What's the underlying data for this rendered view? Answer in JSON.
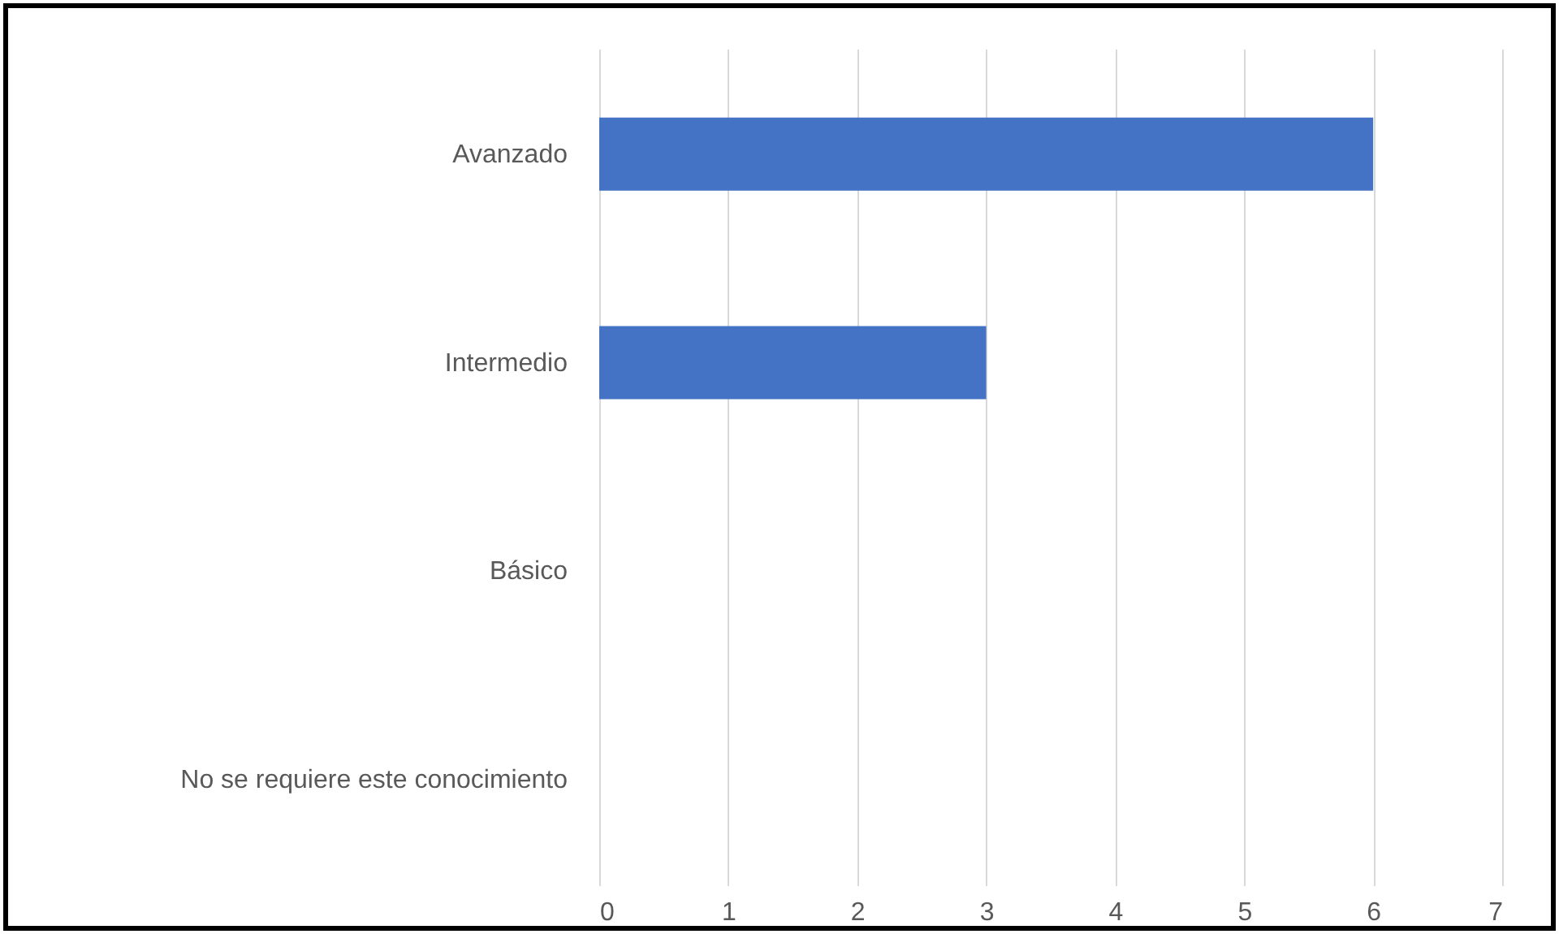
{
  "chart_data": {
    "type": "bar",
    "orientation": "horizontal",
    "categories": [
      "Avanzado",
      "Intermedio",
      "Básico",
      "No se requiere este conocimiento"
    ],
    "values": [
      6,
      3,
      0,
      0
    ],
    "color": "#4472c4",
    "xlim": [
      0,
      7
    ],
    "xticks": [
      0,
      1,
      2,
      3,
      4,
      5,
      6,
      7
    ],
    "grid": "x"
  }
}
